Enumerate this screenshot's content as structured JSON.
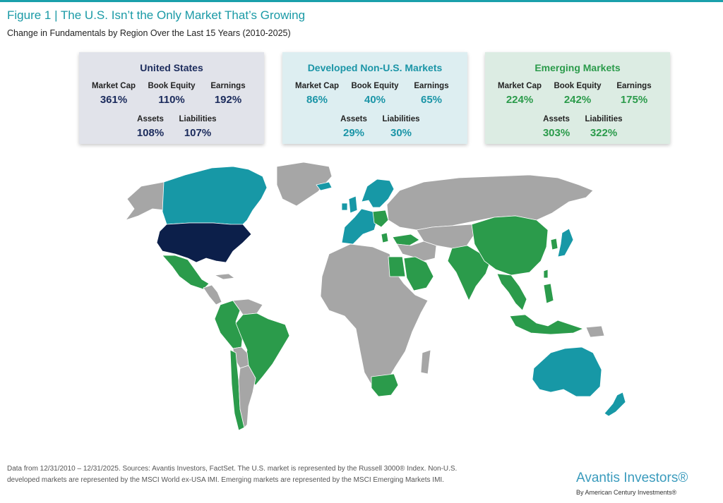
{
  "header": {
    "title": "Figure 1 | The U.S. Isn’t the Only Market That’s Growing",
    "subtitle": "Change in Fundamentals by Region Over the Last 15 Years (2010-2025)"
  },
  "colors": {
    "accent": "#1aa0ab",
    "us": "#0c1f4a",
    "developed": "#1798a6",
    "emerging": "#2b9b4b",
    "other": "#a6a6a6"
  },
  "cards": [
    {
      "title": "United States",
      "color": "#1b2b5c",
      "bg": "#e1e3ea",
      "market_cap_label": "Market Cap",
      "market_cap": "361%",
      "book_equity_label": "Book Equity",
      "book_equity": "110%",
      "earnings_label": "Earnings",
      "earnings": "192%",
      "assets_label": "Assets",
      "assets": "108%",
      "liabilities_label": "Liabilities",
      "liabilities": "107%"
    },
    {
      "title": "Developed Non-U.S. Markets",
      "color": "#1b95a7",
      "bg": "#ddeef1",
      "market_cap_label": "Market Cap",
      "market_cap": "86%",
      "book_equity_label": "Book Equity",
      "book_equity": "40%",
      "earnings_label": "Earnings",
      "earnings": "65%",
      "assets_label": "Assets",
      "assets": "29%",
      "liabilities_label": "Liabilities",
      "liabilities": "30%"
    },
    {
      "title": "Emerging Markets",
      "color": "#2b9b4b",
      "bg": "#dcece3",
      "market_cap_label": "Market Cap",
      "market_cap": "224%",
      "book_equity_label": "Book Equity",
      "book_equity": "242%",
      "earnings_label": "Earnings",
      "earnings": "175%",
      "assets_label": "Assets",
      "assets": "303%",
      "liabilities_label": "Liabilities",
      "liabilities": "322%"
    }
  ],
  "footer": {
    "line1": "Data from 12/31/2010 – 12/31/2025. Sources: Avantis Investors, FactSet. The U.S. market is represented by the Russell 3000® Index. Non-U.S.",
    "line2": "developed markets are represented by the MSCI World ex-USA IMI. Emerging markets are represented by the MSCI Emerging Markets IMI."
  },
  "brand": {
    "name": "Avantis Investors®",
    "sub": "By American Century Investments®"
  }
}
